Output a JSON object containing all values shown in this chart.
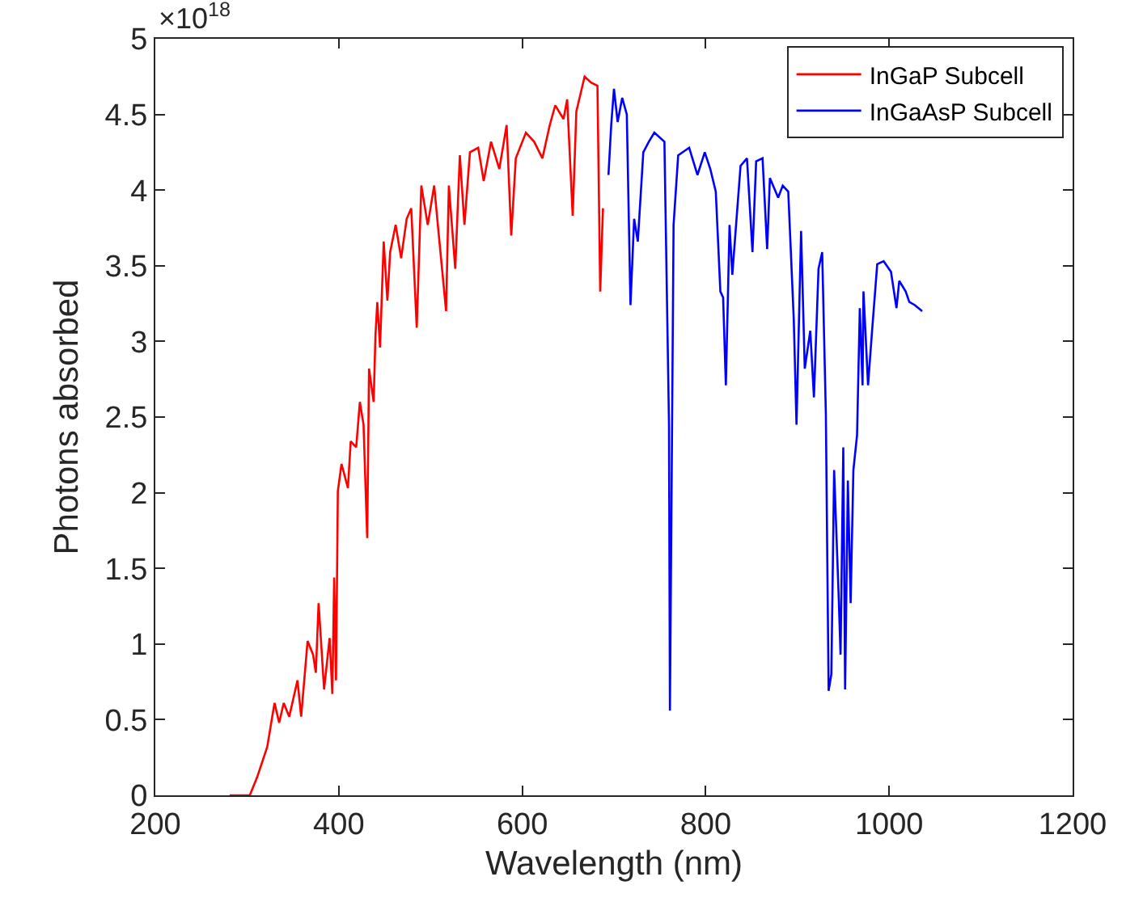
{
  "chart_data": {
    "type": "line",
    "xlabel": "Wavelength (nm)",
    "ylabel": "Photons absorbed",
    "annotations": [
      "×10$^{18}$"
    ],
    "xlim": [
      200,
      1200
    ],
    "xticks": [
      200,
      400,
      600,
      800,
      1000,
      1200
    ],
    "ylim": [
      0,
      5
    ],
    "yticks": [
      0,
      0.5,
      1,
      1.5,
      2,
      2.5,
      3,
      3.5,
      4,
      4.5,
      5
    ],
    "legend": "top right",
    "marker": "none",
    "line_style": "solid",
    "series": [
      {
        "name": "InGaP Subcell",
        "color": "#ff0000",
        "x": [
          281,
          303,
          311,
          322,
          328,
          330,
          335,
          340,
          346,
          355,
          359,
          366,
          372,
          375,
          378,
          384,
          390,
          393,
          395,
          397,
          399,
          403,
          410,
          413,
          419,
          423,
          427,
          431,
          433,
          438,
          440,
          442,
          445,
          449,
          453,
          456,
          462,
          468,
          474,
          479,
          485,
          490,
          497,
          504,
          508,
          517,
          520,
          527,
          532,
          537,
          543,
          552,
          558,
          566,
          575,
          583,
          588,
          593,
          604,
          613,
          622,
          630,
          636,
          645,
          649,
          655,
          659,
          668,
          675,
          682,
          685,
          688
        ],
        "values": [
          0,
          0,
          0.12,
          0.32,
          0.54,
          0.61,
          0.48,
          0.61,
          0.52,
          0.76,
          0.52,
          1.02,
          0.93,
          0.81,
          1.27,
          0.7,
          1.04,
          0.67,
          1.44,
          0.76,
          2.01,
          2.19,
          2.03,
          2.34,
          2.3,
          2.6,
          2.45,
          1.7,
          2.82,
          2.6,
          3.04,
          3.26,
          2.96,
          3.66,
          3.27,
          3.59,
          3.77,
          3.55,
          3.81,
          3.88,
          3.09,
          4.03,
          3.77,
          4.03,
          3.77,
          3.2,
          4.03,
          3.48,
          4.23,
          3.77,
          4.25,
          4.28,
          4.06,
          4.32,
          4.14,
          4.43,
          3.7,
          4.21,
          4.38,
          4.32,
          4.21,
          4.43,
          4.56,
          4.47,
          4.6,
          3.83,
          4.52,
          4.75,
          4.71,
          4.69,
          3.33,
          3.88
        ]
      },
      {
        "name": "InGaAsP Subcell",
        "color": "#0000ff",
        "x": [
          694,
          697,
          700,
          704,
          709,
          714,
          718,
          722,
          726,
          732,
          738,
          744,
          755,
          760,
          761,
          762,
          765,
          770,
          782,
          791,
          799,
          805,
          811,
          816,
          819,
          822,
          826,
          829,
          838,
          845,
          851,
          855,
          862,
          867,
          870,
          879,
          884,
          890,
          896,
          899,
          904,
          908,
          914,
          918,
          923,
          927,
          931,
          934,
          937,
          940,
          945,
          947,
          950,
          952,
          955,
          958,
          961,
          965,
          968,
          971,
          972,
          977,
          981,
          987,
          994,
          1002,
          1008,
          1011,
          1018,
          1022,
          1028,
          1036
        ],
        "values": [
          4.1,
          4.43,
          4.67,
          4.45,
          4.61,
          4.5,
          3.24,
          3.81,
          3.66,
          4.25,
          4.32,
          4.38,
          4.32,
          2.45,
          0.56,
          1.35,
          3.77,
          4.23,
          4.28,
          4.1,
          4.25,
          4.14,
          3.99,
          3.33,
          3.29,
          2.71,
          3.77,
          3.44,
          4.16,
          4.21,
          3.59,
          4.19,
          4.21,
          3.61,
          4.08,
          3.95,
          4.03,
          3.99,
          3.15,
          2.45,
          3.73,
          2.82,
          3.07,
          2.63,
          3.48,
          3.59,
          2.52,
          0.69,
          0.8,
          2.15,
          1.31,
          0.93,
          2.3,
          0.7,
          2.08,
          1.27,
          2.15,
          2.38,
          3.22,
          2.71,
          3.33,
          2.71,
          3.04,
          3.51,
          3.53,
          3.46,
          3.22,
          3.4,
          3.33,
          3.26,
          3.24,
          3.2
        ]
      }
    ]
  }
}
